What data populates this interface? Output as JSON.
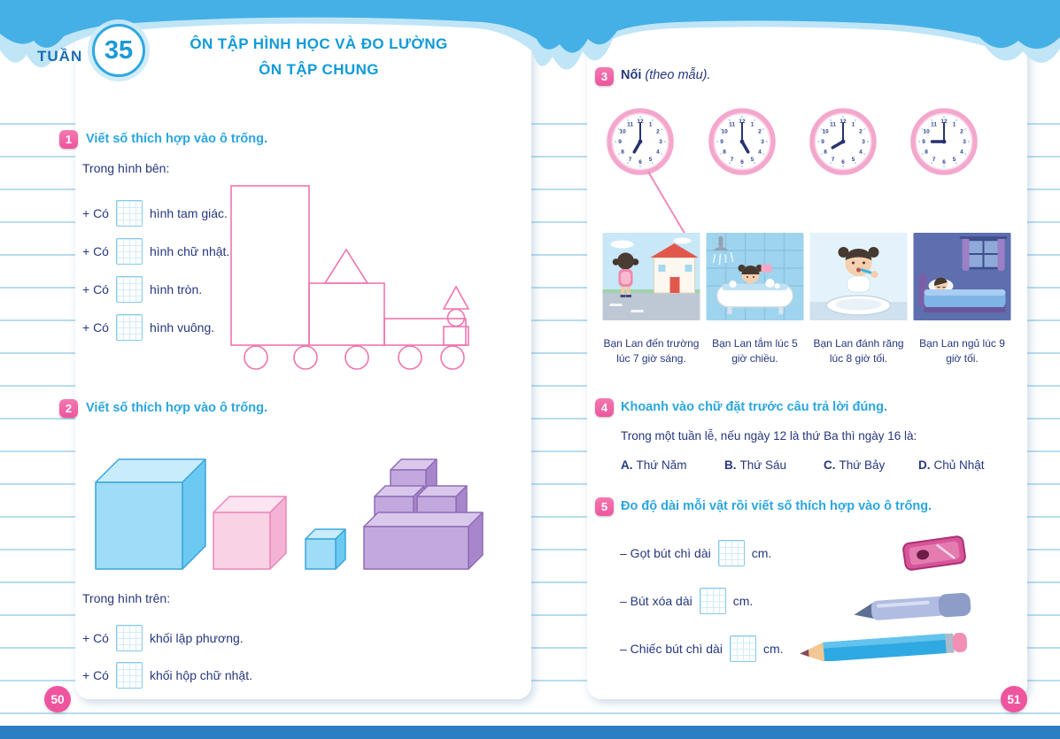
{
  "colors": {
    "accent_pink": "#ee559c",
    "title_blue": "#109bd8",
    "text_navy": "#26377f",
    "band_blue": "#45b0e6",
    "clock_ring_pink": "#f4a7cc"
  },
  "header": {
    "week_label": "TUẦN",
    "week_number": "35",
    "title_line1": "ÔN TẬP HÌNH HỌC VÀ ĐO LƯỜNG",
    "title_line2": "ÔN TẬP CHUNG"
  },
  "left_page": {
    "page_number": "50",
    "exercise1": {
      "number": "1",
      "title": "Viết số thích hợp vào ô trống.",
      "intro": "Trong hình bên:",
      "items": [
        {
          "prefix": "+ Có",
          "suffix": "hình tam giác."
        },
        {
          "prefix": "+ Có",
          "suffix": "hình chữ nhật."
        },
        {
          "prefix": "+ Có",
          "suffix": "hình tròn."
        },
        {
          "prefix": "+ Có",
          "suffix": "hình vuông."
        }
      ]
    },
    "exercise2": {
      "number": "2",
      "title": "Viết số thích hợp vào ô trống.",
      "intro": "Trong hình trên:",
      "items": [
        {
          "prefix": "+ Có",
          "suffix": "khối lập phương."
        },
        {
          "prefix": "+ Có",
          "suffix": "khối hộp chữ nhật."
        }
      ]
    }
  },
  "right_page": {
    "page_number": "51",
    "exercise3": {
      "number": "3",
      "title": "Nối",
      "title_note": "(theo mẫu).",
      "clocks": [
        {
          "time": "7:00",
          "hour": 7,
          "minute": 0
        },
        {
          "time": "5:00",
          "hour": 5,
          "minute": 0
        },
        {
          "time": "8:00",
          "hour": 8,
          "minute": 0
        },
        {
          "time": "9:00",
          "hour": 9,
          "minute": 0
        }
      ],
      "pictures": [
        {
          "scene": "school",
          "caption": "Bạn Lan đến trường lúc 7 giờ sáng."
        },
        {
          "scene": "bath",
          "caption": "Bạn Lan tắm lúc 5 giờ chiều."
        },
        {
          "scene": "brush-teeth",
          "caption": "Bạn Lan đánh răng lúc 8 giờ tối."
        },
        {
          "scene": "sleep",
          "caption": "Bạn Lan ngủ lúc 9 giờ tối."
        }
      ]
    },
    "exercise4": {
      "number": "4",
      "title": "Khoanh vào chữ đặt trước câu trả lời đúng.",
      "question": "Trong một tuần lễ, nếu ngày 12 là thứ Ba thì ngày 16 là:",
      "options": [
        {
          "letter": "A.",
          "text": "Thứ Năm"
        },
        {
          "letter": "B.",
          "text": "Thứ Sáu"
        },
        {
          "letter": "C.",
          "text": "Thứ Bảy"
        },
        {
          "letter": "D.",
          "text": "Chủ Nhật"
        }
      ]
    },
    "exercise5": {
      "number": "5",
      "title": "Đo độ dài mỗi vật rồi viết số thích hợp vào ô trống.",
      "items": [
        {
          "prefix": "– Gọt bút chì dài",
          "suffix": "cm.",
          "object": "sharpener"
        },
        {
          "prefix": "– Bút xóa dài",
          "suffix": "cm.",
          "object": "correction-pen"
        },
        {
          "prefix": "– Chiếc bút chì dài",
          "suffix": "cm.",
          "object": "pencil"
        }
      ]
    }
  }
}
